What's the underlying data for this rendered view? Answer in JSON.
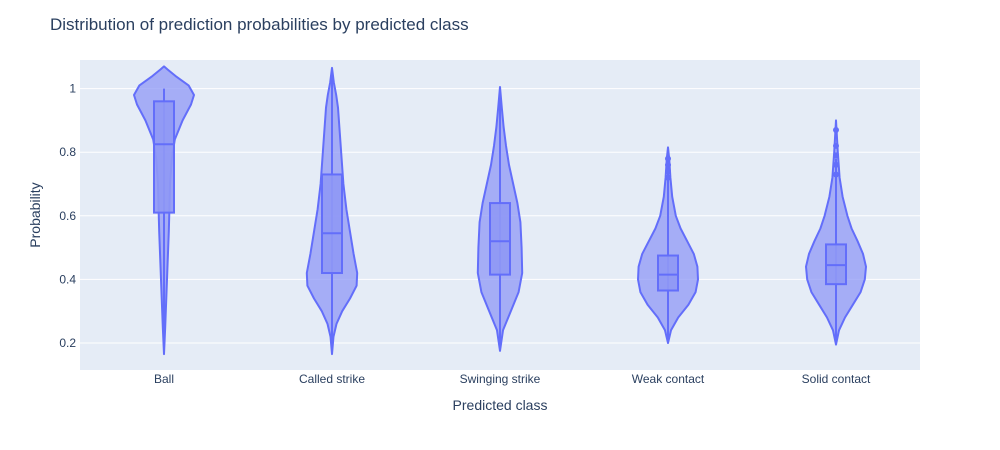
{
  "chart_data": {
    "type": "violin",
    "title": "Distribution of prediction probabilities by predicted class",
    "xlabel": "Predicted class",
    "ylabel": "Probability",
    "ylim": [
      0.115,
      1.09
    ],
    "yticks": [
      0.2,
      0.4,
      0.6,
      0.8,
      1
    ],
    "ytick_labels": [
      "0.2",
      "0.4",
      "0.6",
      "0.8",
      "1"
    ],
    "grid": true,
    "colors": {
      "fill": "#8f98f5",
      "stroke": "#636efa",
      "plot_bg": "#e5ecf6",
      "grid": "#ffffff"
    },
    "categories": [
      "Ball",
      "Called strike",
      "Swinging strike",
      "Weak contact",
      "Solid contact"
    ],
    "violins": [
      {
        "category": "Ball",
        "q1": 0.61,
        "median": 0.825,
        "q3": 0.96,
        "whisker_low": 0.165,
        "whisker_high": 1.0,
        "outliers": [],
        "density": [
          [
            0.165,
            0.0
          ],
          [
            0.25,
            0.04
          ],
          [
            0.35,
            0.08
          ],
          [
            0.45,
            0.12
          ],
          [
            0.55,
            0.16
          ],
          [
            0.62,
            0.18
          ],
          [
            0.7,
            0.2
          ],
          [
            0.78,
            0.26
          ],
          [
            0.84,
            0.36
          ],
          [
            0.9,
            0.62
          ],
          [
            0.95,
            0.9
          ],
          [
            0.98,
            1.0
          ],
          [
            1.01,
            0.82
          ],
          [
            1.04,
            0.38
          ],
          [
            1.06,
            0.12
          ],
          [
            1.07,
            0.0
          ]
        ]
      },
      {
        "category": "Called strike",
        "q1": 0.42,
        "median": 0.545,
        "q3": 0.73,
        "whisker_low": 0.165,
        "whisker_high": 1.065,
        "outliers": [],
        "density": [
          [
            0.165,
            0.0
          ],
          [
            0.22,
            0.05
          ],
          [
            0.26,
            0.15
          ],
          [
            0.3,
            0.34
          ],
          [
            0.34,
            0.6
          ],
          [
            0.38,
            0.82
          ],
          [
            0.42,
            0.84
          ],
          [
            0.48,
            0.72
          ],
          [
            0.55,
            0.6
          ],
          [
            0.62,
            0.48
          ],
          [
            0.7,
            0.38
          ],
          [
            0.78,
            0.32
          ],
          [
            0.86,
            0.26
          ],
          [
            0.94,
            0.2
          ],
          [
            0.98,
            0.14
          ],
          [
            1.02,
            0.06
          ],
          [
            1.065,
            0.0
          ]
        ]
      },
      {
        "category": "Swinging strike",
        "q1": 0.415,
        "median": 0.52,
        "q3": 0.64,
        "whisker_low": 0.175,
        "whisker_high": 1.005,
        "outliers": [],
        "density": [
          [
            0.175,
            0.0
          ],
          [
            0.24,
            0.1
          ],
          [
            0.3,
            0.36
          ],
          [
            0.36,
            0.62
          ],
          [
            0.42,
            0.74
          ],
          [
            0.5,
            0.72
          ],
          [
            0.58,
            0.68
          ],
          [
            0.64,
            0.58
          ],
          [
            0.7,
            0.44
          ],
          [
            0.76,
            0.3
          ],
          [
            0.82,
            0.2
          ],
          [
            0.88,
            0.12
          ],
          [
            0.94,
            0.06
          ],
          [
            1.005,
            0.0
          ]
        ]
      },
      {
        "category": "Weak contact",
        "q1": 0.365,
        "median": 0.415,
        "q3": 0.475,
        "whisker_low": 0.2,
        "whisker_high": 0.79,
        "outliers": [
          0.72,
          0.74,
          0.76,
          0.78
        ],
        "density": [
          [
            0.2,
            0.0
          ],
          [
            0.24,
            0.1
          ],
          [
            0.28,
            0.34
          ],
          [
            0.32,
            0.68
          ],
          [
            0.36,
            0.92
          ],
          [
            0.4,
            1.0
          ],
          [
            0.44,
            0.98
          ],
          [
            0.48,
            0.86
          ],
          [
            0.52,
            0.64
          ],
          [
            0.56,
            0.42
          ],
          [
            0.6,
            0.26
          ],
          [
            0.66,
            0.14
          ],
          [
            0.72,
            0.08
          ],
          [
            0.78,
            0.04
          ],
          [
            0.815,
            0.0
          ]
        ]
      },
      {
        "category": "Solid contact",
        "q1": 0.385,
        "median": 0.445,
        "q3": 0.51,
        "whisker_low": 0.195,
        "whisker_high": 0.78,
        "outliers": [
          0.73,
          0.76,
          0.79,
          0.82,
          0.87
        ],
        "density": [
          [
            0.195,
            0.0
          ],
          [
            0.24,
            0.1
          ],
          [
            0.28,
            0.3
          ],
          [
            0.32,
            0.56
          ],
          [
            0.36,
            0.82
          ],
          [
            0.4,
            0.96
          ],
          [
            0.44,
            1.0
          ],
          [
            0.48,
            0.9
          ],
          [
            0.52,
            0.72
          ],
          [
            0.56,
            0.52
          ],
          [
            0.6,
            0.38
          ],
          [
            0.66,
            0.22
          ],
          [
            0.72,
            0.12
          ],
          [
            0.8,
            0.06
          ],
          [
            0.9,
            0.0
          ]
        ]
      }
    ]
  }
}
